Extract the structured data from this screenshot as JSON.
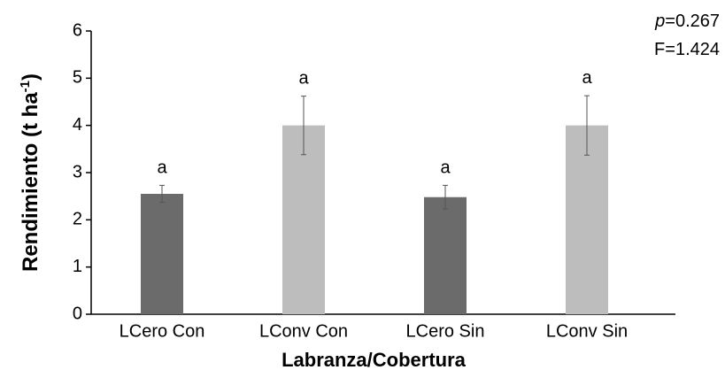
{
  "chart_data": {
    "type": "bar",
    "y_label": {
      "text": "Rendimiento (t ha",
      "sup": "-1",
      "end": ")"
    },
    "x_label": "Labranza/Cobertura",
    "annotations": [
      {
        "stat": "p",
        "text": "=0.267"
      },
      {
        "text": "F=1.424"
      }
    ],
    "categories": [
      "LCero Con",
      "LConv Con",
      "LCero Sin",
      "LConv Sin"
    ],
    "values": [
      2.55,
      4.0,
      2.48,
      4.0
    ],
    "errors": [
      0.18,
      0.62,
      0.25,
      0.63
    ],
    "letters": [
      "a",
      "a",
      "a",
      "a"
    ],
    "colors": [
      "#6b6b6b",
      "#bdbdbd",
      "#6b6b6b",
      "#bdbdbd"
    ],
    "ylim": [
      0,
      6
    ],
    "yticks": [
      0,
      1,
      2,
      3,
      4,
      5,
      6
    ]
  }
}
